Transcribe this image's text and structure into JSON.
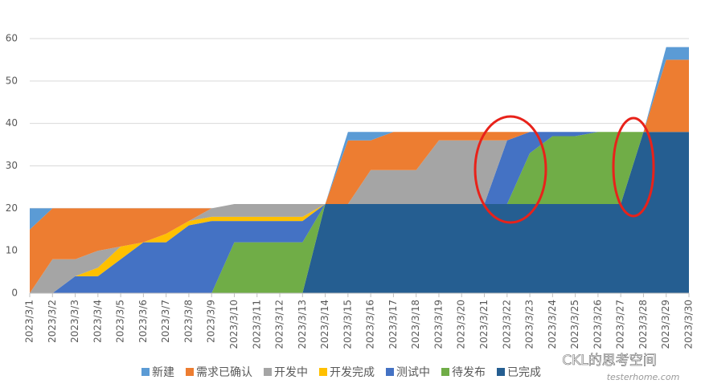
{
  "chart_data": {
    "type": "stacked_area",
    "categories": [
      "2023/3/1",
      "2023/3/2",
      "2023/3/3",
      "2023/3/4",
      "2023/3/5",
      "2023/3/6",
      "2023/3/7",
      "2023/3/8",
      "2023/3/9",
      "2023/3/10",
      "2023/3/11",
      "2023/3/12",
      "2023/3/13",
      "2023/3/14",
      "2023/3/15",
      "2023/3/16",
      "2023/3/17",
      "2023/3/18",
      "2023/3/19",
      "2023/3/20",
      "2023/3/21",
      "2023/3/22",
      "2023/3/23",
      "2023/3/24",
      "2023/3/25",
      "2023/3/26",
      "2023/3/27",
      "2023/3/28",
      "2023/3/29",
      "2023/3/30"
    ],
    "series": [
      {
        "name": "新建",
        "color": "#5b9bd5",
        "values": [
          5,
          0,
          0,
          0,
          0,
          0,
          0,
          0,
          0,
          0,
          0,
          0,
          0,
          0,
          2,
          2,
          0,
          0,
          0,
          0,
          0,
          0,
          0,
          0,
          0,
          0,
          0,
          0,
          3,
          3
        ]
      },
      {
        "name": "需求已确认",
        "color": "#ed7d31",
        "values": [
          15,
          12,
          12,
          10,
          9,
          8,
          6,
          3,
          0,
          0,
          0,
          0,
          0,
          0,
          15,
          7,
          9,
          9,
          2,
          2,
          2,
          2,
          0,
          0,
          0,
          0,
          0,
          0,
          17,
          17
        ]
      },
      {
        "name": "开发中",
        "color": "#a5a5a5",
        "values": [
          0,
          8,
          4,
          4,
          0,
          0,
          0,
          0,
          2,
          3,
          3,
          3,
          3,
          0,
          0,
          8,
          8,
          8,
          15,
          15,
          15,
          0,
          0,
          0,
          0,
          0,
          0,
          0,
          0,
          0
        ]
      },
      {
        "name": "开发完成",
        "color": "#ffc000",
        "values": [
          0,
          0,
          0,
          2,
          3,
          0,
          2,
          1,
          1,
          1,
          1,
          1,
          1,
          0,
          0,
          0,
          0,
          0,
          0,
          0,
          0,
          0,
          0,
          0,
          0,
          0,
          0,
          0,
          0,
          0
        ]
      },
      {
        "name": "测试中",
        "color": "#4472c4",
        "values": [
          0,
          0,
          4,
          4,
          8,
          12,
          12,
          16,
          17,
          5,
          5,
          5,
          5,
          0,
          0,
          0,
          0,
          0,
          0,
          0,
          0,
          15,
          5,
          1,
          1,
          0,
          0,
          0,
          0,
          0
        ]
      },
      {
        "name": "待发布",
        "color": "#70ad47",
        "values": [
          0,
          0,
          0,
          0,
          0,
          0,
          0,
          0,
          0,
          12,
          12,
          12,
          12,
          0,
          0,
          0,
          0,
          0,
          0,
          0,
          0,
          0,
          12,
          16,
          16,
          17,
          17,
          0,
          0,
          0
        ]
      },
      {
        "name": "已完成",
        "color": "#255e91",
        "values": [
          0,
          0,
          0,
          0,
          0,
          0,
          0,
          0,
          0,
          0,
          0,
          0,
          0,
          21,
          21,
          21,
          21,
          21,
          21,
          21,
          21,
          21,
          21,
          21,
          21,
          21,
          21,
          38,
          38,
          38
        ]
      }
    ],
    "ylim": [
      0,
      60
    ],
    "yticks": [
      0,
      10,
      20,
      30,
      40,
      50,
      60
    ],
    "grid": true,
    "legend": "bottom",
    "watermark": "CKL的思考空间",
    "watermark_sub": "testerhome.com"
  }
}
